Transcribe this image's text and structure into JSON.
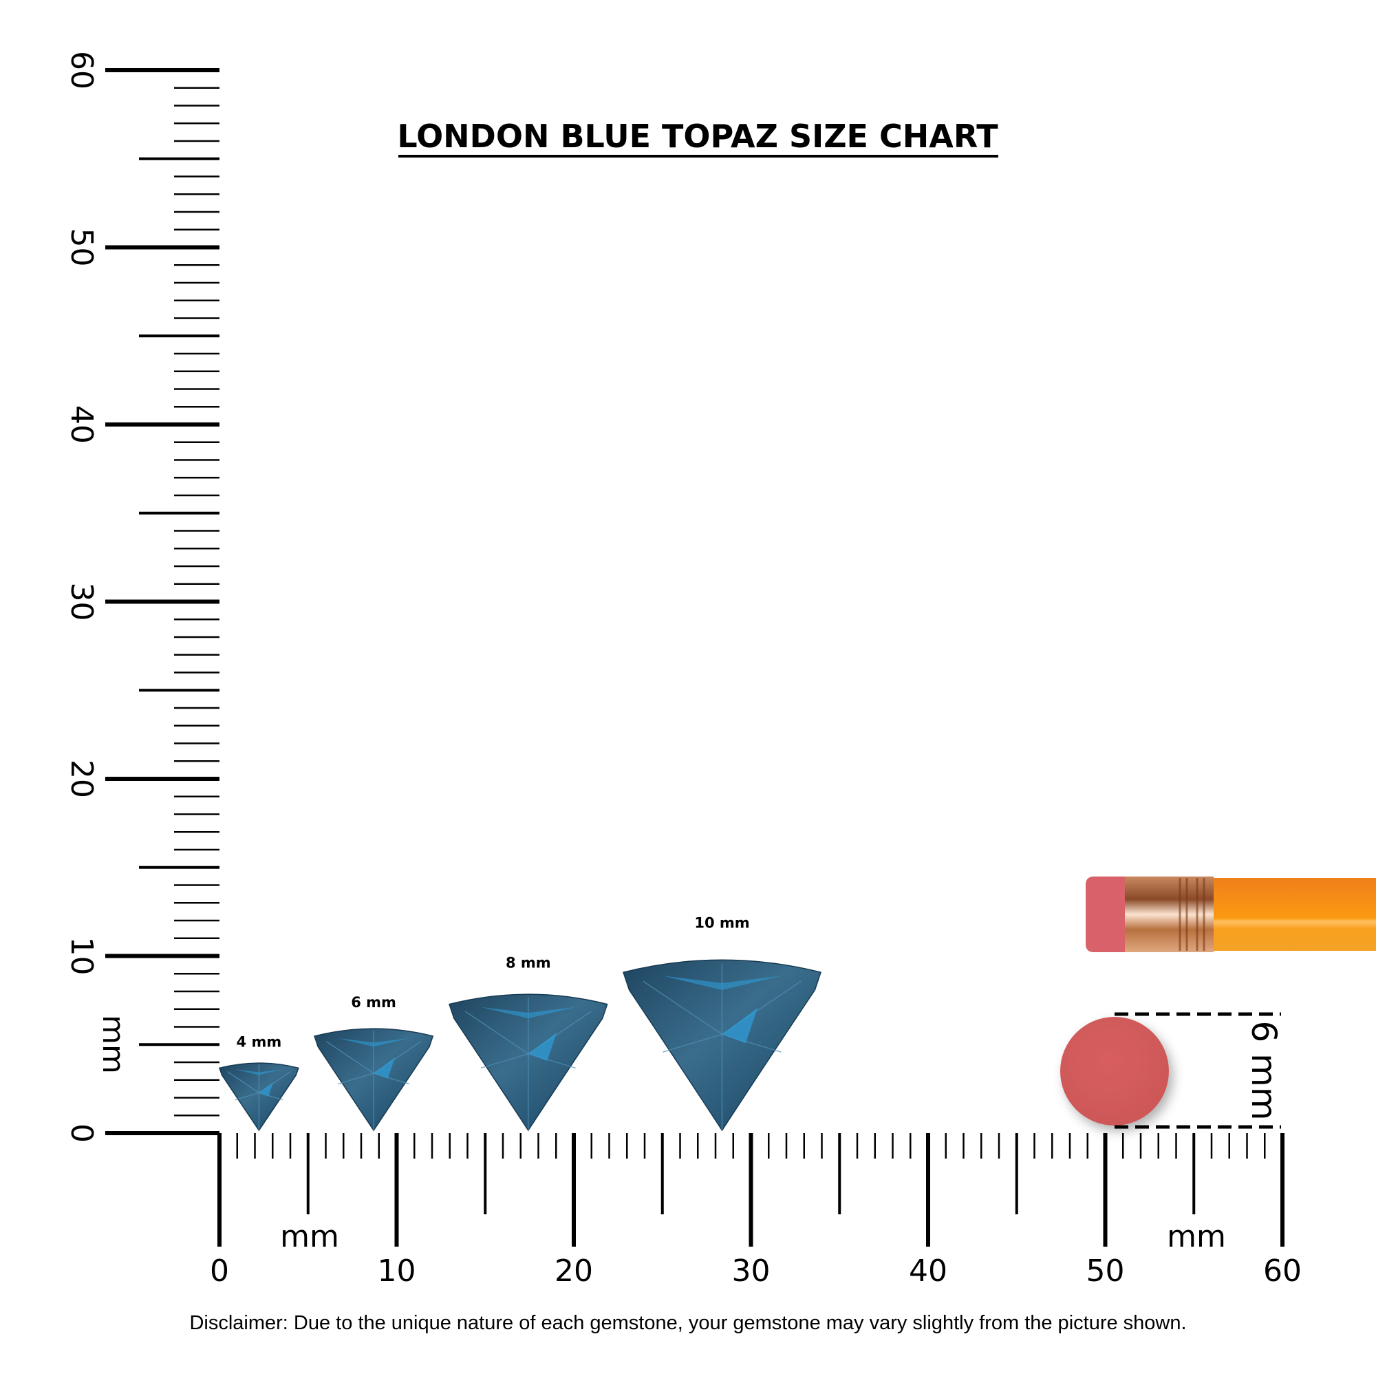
{
  "title": "LONDON BLUE TOPAZ SIZE CHART",
  "vertical_ruler": {
    "unit_label": "mm",
    "labels": [
      "0",
      "10",
      "20",
      "30",
      "40",
      "50",
      "60"
    ],
    "range_mm": [
      0,
      60
    ]
  },
  "horizontal_ruler": {
    "unit_label_left": "mm",
    "unit_label_right": "mm",
    "labels": [
      "0",
      "10",
      "20",
      "30",
      "40",
      "50",
      "60"
    ],
    "range_mm": [
      0,
      60
    ]
  },
  "gems": [
    {
      "label": "4 mm",
      "size_mm": 4
    },
    {
      "label": "6 mm",
      "size_mm": 6
    },
    {
      "label": "8 mm",
      "size_mm": 8
    },
    {
      "label": "10 mm",
      "size_mm": 10
    }
  ],
  "reference": {
    "label": "6 mm",
    "object": "pencil eraser"
  },
  "disclaimer": "Disclaimer: Due to the unique nature of each gemstone, your gemstone may vary slightly from the picture shown.",
  "colors": {
    "gem": "#2b5a78",
    "gem_highlight": "#2f9bd6",
    "eraser": "#d45a5a",
    "pencil": "#f7941d",
    "ferrule": "#e8b48a"
  }
}
